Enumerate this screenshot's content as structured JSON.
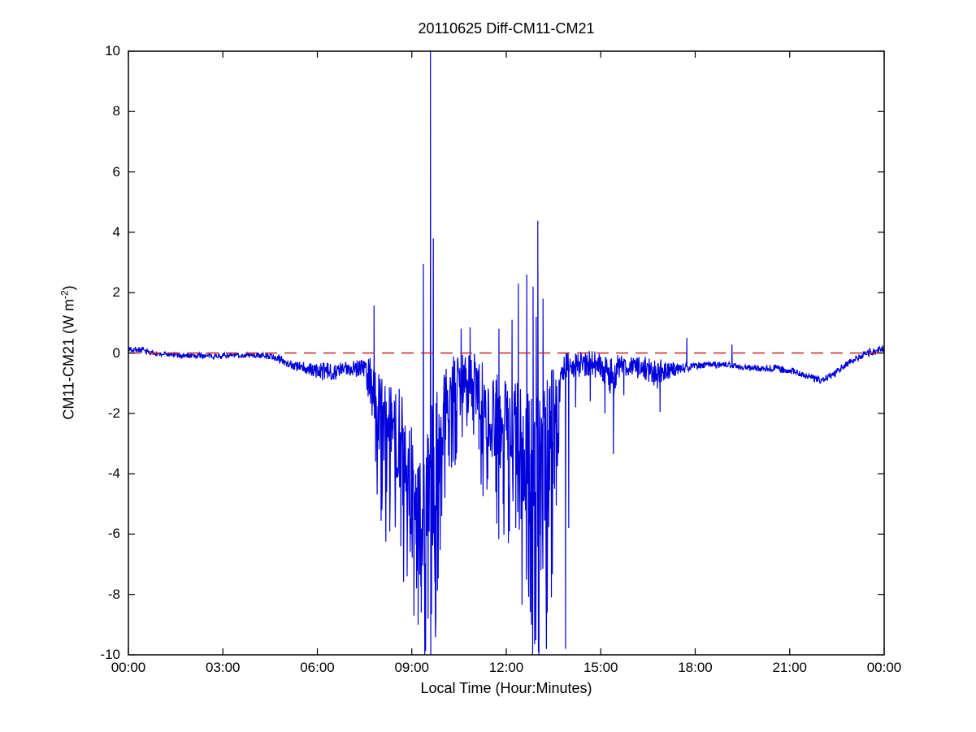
{
  "chart_data": {
    "type": "line",
    "title": "20110625 Diff-CM11-CM21",
    "xlabel": "Local Time (Hour:Minutes)",
    "ylabel": "CM11-CM21 (W m⁻²)",
    "ylabel_parts": {
      "main": "CM11-CM21 (W m",
      "sup": "-2",
      "end": ")"
    },
    "x_unit": "minutes_local_time",
    "xlim": [
      0,
      1440
    ],
    "ylim": [
      -10,
      10
    ],
    "grid": false,
    "legend": null,
    "x_ticks": [
      {
        "t": 0,
        "label": "00:00"
      },
      {
        "t": 180,
        "label": "03:00"
      },
      {
        "t": 360,
        "label": "06:00"
      },
      {
        "t": 540,
        "label": "09:00"
      },
      {
        "t": 720,
        "label": "12:00"
      },
      {
        "t": 900,
        "label": "15:00"
      },
      {
        "t": 1080,
        "label": "18:00"
      },
      {
        "t": 1260,
        "label": "21:00"
      },
      {
        "t": 1440,
        "label": "00:00"
      }
    ],
    "y_ticks": [
      {
        "v": -10,
        "label": "-10"
      },
      {
        "v": -8,
        "label": "-8"
      },
      {
        "v": -6,
        "label": "-6"
      },
      {
        "v": -4,
        "label": "-4"
      },
      {
        "v": -2,
        "label": "-2"
      },
      {
        "v": 0,
        "label": "0"
      },
      {
        "v": 2,
        "label": "2"
      },
      {
        "v": 4,
        "label": "4"
      },
      {
        "v": 6,
        "label": "6"
      },
      {
        "v": 8,
        "label": "8"
      },
      {
        "v": 10,
        "label": "10"
      }
    ],
    "series": [
      {
        "name": "Diff CM11-CM21",
        "color": "#0000dd",
        "style": "solid",
        "clip": [
          -10,
          10
        ],
        "sample_step_min": 0.75,
        "noise_seed": 7,
        "quantize_step_when_quiet": 0.05,
        "envelope_keyframes": [
          [
            0,
            0.13,
            0.1
          ],
          [
            25,
            0.1,
            0.1
          ],
          [
            50,
            -0.02,
            0.08
          ],
          [
            100,
            -0.08,
            0.08
          ],
          [
            160,
            -0.1,
            0.09
          ],
          [
            230,
            -0.07,
            0.08
          ],
          [
            270,
            -0.1,
            0.1
          ],
          [
            290,
            -0.22,
            0.14
          ],
          [
            320,
            -0.45,
            0.18
          ],
          [
            345,
            -0.55,
            0.22
          ],
          [
            370,
            -0.62,
            0.3
          ],
          [
            400,
            -0.6,
            0.28
          ],
          [
            425,
            -0.48,
            0.25
          ],
          [
            448,
            -0.45,
            0.45
          ],
          [
            462,
            -0.9,
            0.9
          ],
          [
            472,
            -1.8,
            1.3
          ],
          [
            485,
            -2.4,
            1.5
          ],
          [
            500,
            -2.2,
            1.4
          ],
          [
            512,
            -2.6,
            1.6
          ],
          [
            528,
            -3.6,
            2.0
          ],
          [
            540,
            -4.8,
            2.4
          ],
          [
            555,
            -5.6,
            2.6
          ],
          [
            568,
            -5.0,
            2.7
          ],
          [
            580,
            -4.2,
            2.6
          ],
          [
            592,
            -2.6,
            1.9
          ],
          [
            605,
            -1.6,
            1.3
          ],
          [
            620,
            -1.0,
            1.0
          ],
          [
            638,
            -0.8,
            0.9
          ],
          [
            655,
            -0.9,
            0.95
          ],
          [
            672,
            -1.3,
            1.1
          ],
          [
            690,
            -2.0,
            1.5
          ],
          [
            705,
            -2.4,
            1.7
          ],
          [
            720,
            -2.7,
            1.9
          ],
          [
            737,
            -3.0,
            2.1
          ],
          [
            755,
            -3.4,
            2.4
          ],
          [
            770,
            -3.9,
            2.6
          ],
          [
            783,
            -4.1,
            2.7
          ],
          [
            795,
            -3.3,
            2.5
          ],
          [
            808,
            -2.2,
            1.9
          ],
          [
            818,
            -1.1,
            1.1
          ],
          [
            828,
            -0.5,
            0.55
          ],
          [
            845,
            -0.38,
            0.45
          ],
          [
            875,
            -0.35,
            0.42
          ],
          [
            905,
            -0.45,
            0.5
          ],
          [
            922,
            -0.85,
            0.85
          ],
          [
            932,
            -0.45,
            0.4
          ],
          [
            960,
            -0.42,
            0.35
          ],
          [
            990,
            -0.55,
            0.42
          ],
          [
            1012,
            -0.7,
            0.55
          ],
          [
            1030,
            -0.58,
            0.28
          ],
          [
            1055,
            -0.48,
            0.18
          ],
          [
            1080,
            -0.42,
            0.12
          ],
          [
            1110,
            -0.38,
            0.1
          ],
          [
            1140,
            -0.4,
            0.1
          ],
          [
            1170,
            -0.48,
            0.1
          ],
          [
            1200,
            -0.5,
            0.1
          ],
          [
            1235,
            -0.52,
            0.12
          ],
          [
            1265,
            -0.6,
            0.12
          ],
          [
            1295,
            -0.78,
            0.12
          ],
          [
            1320,
            -0.88,
            0.12
          ],
          [
            1342,
            -0.72,
            0.12
          ],
          [
            1362,
            -0.45,
            0.12
          ],
          [
            1382,
            -0.2,
            0.12
          ],
          [
            1402,
            -0.05,
            0.12
          ],
          [
            1420,
            0.05,
            0.14
          ],
          [
            1440,
            0.15,
            0.16
          ]
        ],
        "spikes": [
          [
            468,
            1.57
          ],
          [
            471,
            -3.6
          ],
          [
            476,
            -2.9
          ],
          [
            483,
            -5.2
          ],
          [
            492,
            -4.6
          ],
          [
            498,
            -5.6
          ],
          [
            509,
            -4.4
          ],
          [
            519,
            -6.4
          ],
          [
            531,
            -7.4
          ],
          [
            537,
            -5.5
          ],
          [
            544,
            -8.7
          ],
          [
            549,
            -7.8
          ],
          [
            552,
            -9.0
          ],
          [
            558,
            -8.6
          ],
          [
            562,
            2.95
          ],
          [
            566,
            -9.3
          ],
          [
            571,
            -8.8
          ],
          [
            575.5,
            10
          ],
          [
            576.1,
            -10
          ],
          [
            581,
            3.8
          ],
          [
            584,
            -7.6
          ],
          [
            590,
            -6.8
          ],
          [
            597,
            -5.4
          ],
          [
            610,
            -3.4
          ],
          [
            634,
            0.8
          ],
          [
            651,
            0.85
          ],
          [
            668,
            -3.2
          ],
          [
            683,
            -3.8
          ],
          [
            700,
            -4.6
          ],
          [
            706,
            0.8
          ],
          [
            714,
            -5.0
          ],
          [
            724,
            -6.3
          ],
          [
            731,
            1.1
          ],
          [
            738,
            -5.8
          ],
          [
            743,
            2.3
          ],
          [
            748,
            -5.5
          ],
          [
            752,
            -4.9
          ],
          [
            759,
            2.6
          ],
          [
            762,
            -7.0
          ],
          [
            768,
            -9.0
          ],
          [
            771,
            2.2
          ],
          [
            774,
            -9.65
          ],
          [
            777,
            1.2
          ],
          [
            780,
            4.38
          ],
          [
            781.2,
            -9.9
          ],
          [
            786,
            -7.2
          ],
          [
            790,
            1.8
          ],
          [
            793,
            -5.5
          ],
          [
            798,
            -8.6
          ],
          [
            806,
            -8.1
          ],
          [
            812,
            -4.5
          ],
          [
            820,
            -3.0
          ],
          [
            833,
            -9.8
          ],
          [
            839,
            -5.8
          ],
          [
            852,
            -1.8
          ],
          [
            880,
            -1.6
          ],
          [
            908,
            -2.0
          ],
          [
            924,
            -3.35
          ],
          [
            944,
            -1.4
          ],
          [
            1013,
            -1.95
          ],
          [
            1064,
            0.5
          ],
          [
            1150,
            0.28
          ]
        ]
      },
      {
        "name": "zero reference line",
        "color": "#cc2222",
        "style": "dashed",
        "y": 0
      }
    ]
  }
}
